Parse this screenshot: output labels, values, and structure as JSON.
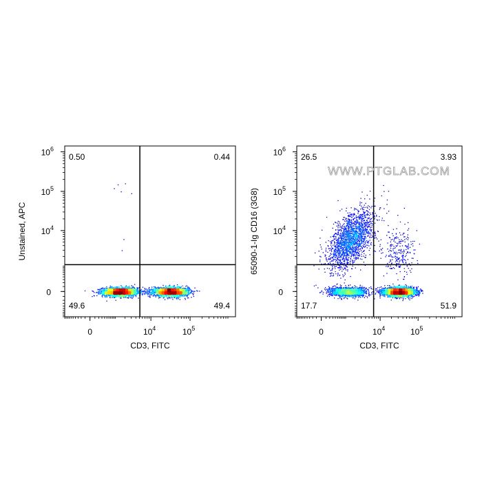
{
  "chart_data": [
    {
      "type": "scatter",
      "xlabel": "CD3, FITC",
      "ylabel": "Unstained, APC",
      "x_ticks": [
        {
          "base": "0",
          "exp": ""
        },
        {
          "base": "10",
          "exp": "4"
        },
        {
          "base": "10",
          "exp": "5"
        }
      ],
      "y_ticks": [
        {
          "base": "10",
          "exp": "6"
        },
        {
          "base": "10",
          "exp": "5"
        },
        {
          "base": "10",
          "exp": "4"
        },
        {
          "base": "0",
          "exp": ""
        }
      ],
      "quadrants": {
        "upper_left": "0.50",
        "upper_right": "0.44",
        "lower_left": "49.6",
        "lower_right": "49.4"
      },
      "watermark": "",
      "populations": [
        {
          "x": 1400,
          "y": 0,
          "count": 2600,
          "sx": 0.22,
          "sy": 0.055
        },
        {
          "x": 32000,
          "y": 0,
          "count": 2600,
          "sx": 0.22,
          "sy": 0.055
        }
      ],
      "sparse_events": [
        {
          "x": 1200,
          "y": 150000
        },
        {
          "x": 1500,
          "y": 100000
        },
        {
          "x": 2000,
          "y": 160000
        },
        {
          "x": 900,
          "y": 120000
        },
        {
          "x": 1800,
          "y": 6000
        },
        {
          "x": 1600,
          "y": 3000
        },
        {
          "x": 3000,
          "y": 90000
        }
      ]
    },
    {
      "type": "scatter",
      "xlabel": "CD3, FITC",
      "ylabel": "65090-1-Ig CD16 (3G8)",
      "x_ticks": [
        {
          "base": "0",
          "exp": ""
        },
        {
          "base": "10",
          "exp": "4"
        },
        {
          "base": "10",
          "exp": "5"
        }
      ],
      "y_ticks": [
        {
          "base": "10",
          "exp": "6"
        },
        {
          "base": "10",
          "exp": "5"
        },
        {
          "base": "10",
          "exp": "4"
        },
        {
          "base": "0",
          "exp": ""
        }
      ],
      "quadrants": {
        "upper_left": "26.5",
        "upper_right": "3.93",
        "lower_left": "17.7",
        "lower_right": "51.9"
      },
      "watermark": "WWW.PTGLAB.COM",
      "populations": [
        {
          "x": 1200,
          "y": 0,
          "count": 1400,
          "sx": 0.25,
          "sy": 0.06
        },
        {
          "x": 1500,
          "y": 6000,
          "count": 1900,
          "sx": 0.3,
          "sy": 0.38,
          "corr": 0.55
        },
        {
          "x": 32000,
          "y": 0,
          "count": 3400,
          "sx": 0.2,
          "sy": 0.055
        },
        {
          "x": 30000,
          "y": 2500,
          "count": 260,
          "sx": 0.22,
          "sy": 0.35
        }
      ],
      "sparse_events": []
    }
  ]
}
